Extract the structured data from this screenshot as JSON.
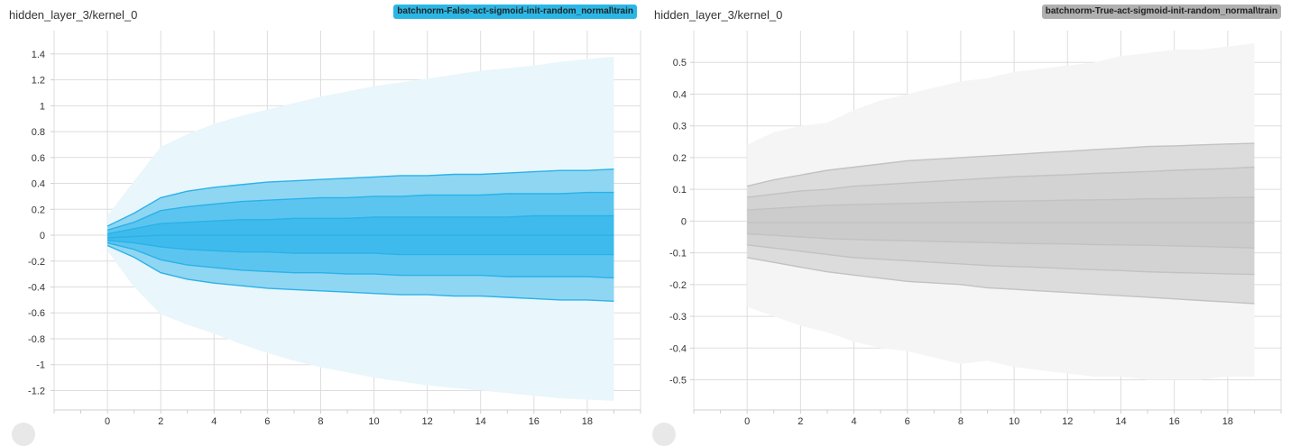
{
  "chart_data": [
    {
      "type": "area",
      "title": "hidden_layer_3/kernel_0",
      "run": "batchnorm-False-act-sigmoid-init-random_normal\\train",
      "run_color": "#2ab7e6",
      "run_text_color": "#222222",
      "band_colors": [
        "#e9f6fc",
        "#8fd6f3",
        "#5cc5ef",
        "#3ebbec"
      ],
      "line_color": "#2ab2e8",
      "xlim": [
        -2,
        20
      ],
      "ylim": [
        -1.35,
        1.58
      ],
      "x_ticks": [
        "0",
        "2",
        "4",
        "6",
        "8",
        "10",
        "12",
        "14",
        "16",
        "18"
      ],
      "y_ticks": [
        "1.4",
        "1.2",
        "1",
        "0.8",
        "0.6",
        "0.4",
        "0.2",
        "0",
        "-0.2",
        "-0.4",
        "-0.6",
        "-0.8",
        "-1",
        "-1.2"
      ],
      "x": [
        0,
        1,
        2,
        3,
        4,
        5,
        6,
        7,
        8,
        9,
        10,
        11,
        12,
        13,
        14,
        15,
        16,
        17,
        18,
        19
      ],
      "percentiles": [
        {
          "name": "max",
          "values": [
            0.15,
            0.42,
            0.68,
            0.78,
            0.86,
            0.92,
            0.97,
            1.02,
            1.07,
            1.11,
            1.15,
            1.18,
            1.21,
            1.24,
            1.27,
            1.29,
            1.31,
            1.34,
            1.36,
            1.38
          ]
        },
        {
          "name": "p93",
          "values": [
            0.07,
            0.17,
            0.29,
            0.34,
            0.37,
            0.39,
            0.41,
            0.42,
            0.43,
            0.44,
            0.45,
            0.46,
            0.46,
            0.47,
            0.47,
            0.48,
            0.49,
            0.5,
            0.5,
            0.51
          ]
        },
        {
          "name": "p84",
          "values": [
            0.04,
            0.1,
            0.19,
            0.22,
            0.24,
            0.26,
            0.27,
            0.28,
            0.29,
            0.29,
            0.3,
            0.3,
            0.31,
            0.31,
            0.31,
            0.32,
            0.32,
            0.32,
            0.33,
            0.33
          ]
        },
        {
          "name": "p69",
          "values": [
            0.01,
            0.05,
            0.09,
            0.1,
            0.11,
            0.12,
            0.12,
            0.13,
            0.13,
            0.13,
            0.14,
            0.14,
            0.14,
            0.14,
            0.14,
            0.14,
            0.15,
            0.15,
            0.15,
            0.15
          ]
        },
        {
          "name": "p50",
          "values": [
            -0.02,
            -0.01,
            0.0,
            0.0,
            0.0,
            0.0,
            0.0,
            0.0,
            0.0,
            0.0,
            0.0,
            0.0,
            0.0,
            0.0,
            0.0,
            0.0,
            0.0,
            0.0,
            0.0,
            0.0
          ]
        },
        {
          "name": "p31",
          "values": [
            -0.04,
            -0.06,
            -0.09,
            -0.11,
            -0.12,
            -0.13,
            -0.13,
            -0.14,
            -0.14,
            -0.14,
            -0.14,
            -0.15,
            -0.15,
            -0.15,
            -0.15,
            -0.15,
            -0.15,
            -0.15,
            -0.15,
            -0.15
          ]
        },
        {
          "name": "p16",
          "values": [
            -0.06,
            -0.11,
            -0.19,
            -0.23,
            -0.25,
            -0.27,
            -0.28,
            -0.29,
            -0.29,
            -0.3,
            -0.3,
            -0.31,
            -0.31,
            -0.31,
            -0.31,
            -0.32,
            -0.32,
            -0.32,
            -0.32,
            -0.33
          ]
        },
        {
          "name": "p7",
          "values": [
            -0.08,
            -0.17,
            -0.29,
            -0.34,
            -0.37,
            -0.39,
            -0.41,
            -0.42,
            -0.43,
            -0.44,
            -0.45,
            -0.46,
            -0.46,
            -0.47,
            -0.47,
            -0.48,
            -0.49,
            -0.5,
            -0.5,
            -0.51
          ]
        },
        {
          "name": "min",
          "values": [
            -0.12,
            -0.4,
            -0.61,
            -0.69,
            -0.76,
            -0.84,
            -0.91,
            -0.97,
            -1.02,
            -1.06,
            -1.1,
            -1.13,
            -1.16,
            -1.18,
            -1.2,
            -1.22,
            -1.24,
            -1.26,
            -1.27,
            -1.28
          ]
        }
      ]
    },
    {
      "type": "area",
      "title": "hidden_layer_3/kernel_0",
      "run": "batchnorm-True-act-sigmoid-init-random_normal\\train",
      "run_color": "#b0b0b0",
      "run_text_color": "#222222",
      "band_colors": [
        "#f5f5f5",
        "#dcdcdc",
        "#d3d3d3",
        "#cccccc"
      ],
      "line_color": "#c2c2c2",
      "xlim": [
        -2,
        20
      ],
      "ylim": [
        -0.595,
        0.6
      ],
      "x_ticks": [
        "0",
        "2",
        "4",
        "6",
        "8",
        "10",
        "12",
        "14",
        "16",
        "18"
      ],
      "y_ticks": [
        "0.5",
        "0.4",
        "0.3",
        "0.2",
        "0.1",
        "0",
        "-0.1",
        "-0.2",
        "-0.3",
        "-0.4",
        "-0.5"
      ],
      "x": [
        0,
        1,
        2,
        3,
        4,
        5,
        6,
        7,
        8,
        9,
        10,
        11,
        12,
        13,
        14,
        15,
        16,
        17,
        18,
        19
      ],
      "percentiles": [
        {
          "name": "max",
          "values": [
            0.24,
            0.28,
            0.3,
            0.31,
            0.35,
            0.38,
            0.4,
            0.42,
            0.44,
            0.45,
            0.47,
            0.48,
            0.49,
            0.5,
            0.52,
            0.53,
            0.54,
            0.54,
            0.55,
            0.56
          ]
        },
        {
          "name": "p93",
          "values": [
            0.11,
            0.13,
            0.145,
            0.16,
            0.17,
            0.18,
            0.19,
            0.195,
            0.2,
            0.205,
            0.21,
            0.215,
            0.22,
            0.225,
            0.23,
            0.235,
            0.237,
            0.24,
            0.243,
            0.245
          ]
        },
        {
          "name": "p84",
          "values": [
            0.075,
            0.085,
            0.095,
            0.1,
            0.11,
            0.115,
            0.12,
            0.125,
            0.13,
            0.135,
            0.14,
            0.143,
            0.146,
            0.15,
            0.153,
            0.156,
            0.16,
            0.163,
            0.166,
            0.17
          ]
        },
        {
          "name": "p69",
          "values": [
            0.035,
            0.04,
            0.045,
            0.05,
            0.052,
            0.054,
            0.056,
            0.058,
            0.06,
            0.062,
            0.063,
            0.064,
            0.066,
            0.067,
            0.068,
            0.07,
            0.071,
            0.072,
            0.074,
            0.075
          ]
        },
        {
          "name": "p50",
          "values": [
            -0.005,
            -0.005,
            -0.005,
            -0.005,
            -0.005,
            -0.005,
            -0.005,
            -0.005,
            -0.005,
            -0.005,
            -0.005,
            -0.005,
            -0.005,
            -0.005,
            -0.005,
            -0.005,
            -0.005,
            -0.005,
            -0.005,
            -0.005
          ]
        },
        {
          "name": "p31",
          "values": [
            -0.04,
            -0.045,
            -0.05,
            -0.055,
            -0.058,
            -0.06,
            -0.062,
            -0.064,
            -0.066,
            -0.068,
            -0.07,
            -0.071,
            -0.072,
            -0.074,
            -0.075,
            -0.076,
            -0.078,
            -0.08,
            -0.082,
            -0.085
          ]
        },
        {
          "name": "p16",
          "values": [
            -0.075,
            -0.085,
            -0.095,
            -0.105,
            -0.115,
            -0.12,
            -0.125,
            -0.13,
            -0.135,
            -0.14,
            -0.143,
            -0.146,
            -0.15,
            -0.153,
            -0.156,
            -0.16,
            -0.162,
            -0.164,
            -0.166,
            -0.168
          ]
        },
        {
          "name": "p7",
          "values": [
            -0.115,
            -0.13,
            -0.145,
            -0.16,
            -0.17,
            -0.18,
            -0.19,
            -0.195,
            -0.2,
            -0.21,
            -0.215,
            -0.22,
            -0.225,
            -0.23,
            -0.235,
            -0.24,
            -0.245,
            -0.25,
            -0.255,
            -0.26
          ]
        },
        {
          "name": "min",
          "values": [
            -0.27,
            -0.3,
            -0.33,
            -0.35,
            -0.38,
            -0.4,
            -0.41,
            -0.43,
            -0.45,
            -0.44,
            -0.46,
            -0.47,
            -0.48,
            -0.49,
            -0.49,
            -0.5,
            -0.5,
            -0.5,
            -0.49,
            -0.49
          ]
        }
      ]
    }
  ]
}
